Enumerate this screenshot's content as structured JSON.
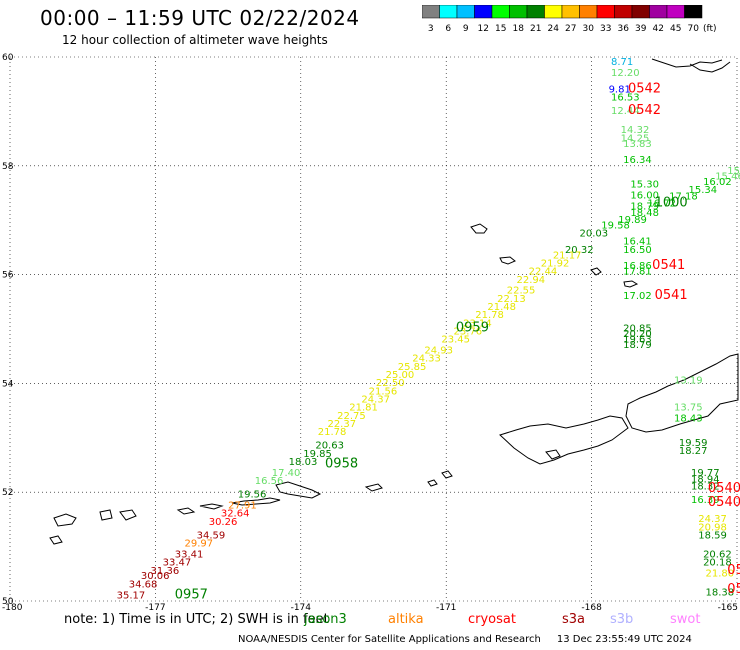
{
  "header": {
    "title": "00:00 – 11:59 UTC 02/22/2024",
    "subtitle": "12 hour collection of altimeter wave heights"
  },
  "colorbar": {
    "unit_label": "(ft)",
    "bins": [
      {
        "color": "#808080",
        "label": "3"
      },
      {
        "color": "#00ffff",
        "label": "6"
      },
      {
        "color": "#00c0ff",
        "label": "9"
      },
      {
        "color": "#0000ff",
        "label": "12"
      },
      {
        "color": "#00ff00",
        "label": "15"
      },
      {
        "color": "#00c000",
        "label": "18"
      },
      {
        "color": "#008000",
        "label": "21"
      },
      {
        "color": "#ffff00",
        "label": "24"
      },
      {
        "color": "#ffc000",
        "label": "27"
      },
      {
        "color": "#ff8000",
        "label": "30"
      },
      {
        "color": "#ff0000",
        "label": "33"
      },
      {
        "color": "#c00000",
        "label": "36"
      },
      {
        "color": "#800000",
        "label": "39"
      },
      {
        "color": "#a000a0",
        "label": "42"
      },
      {
        "color": "#c000c0",
        "label": "45"
      },
      {
        "color": "#000000",
        "label": "70"
      }
    ]
  },
  "map": {
    "lon_range": [
      -180,
      -165
    ],
    "lat_range": [
      50,
      60
    ],
    "lon_ticks": [
      "-180",
      "-177",
      "-174",
      "-171",
      "-168",
      "-165"
    ],
    "lat_ticks": [
      "60",
      "58",
      "56",
      "54",
      "52",
      "50"
    ],
    "grid": true,
    "point_colors": {
      "green_light": "#00c000",
      "green_dark": "#008000",
      "lime": "#33cc33",
      "yellow": "#e6e600",
      "orange": "#ff8000",
      "red": "#ff0000",
      "dark_red": "#a00000",
      "blue": "#0000ff",
      "cyan": "#00b0e0",
      "pale_green": "#66dd66"
    },
    "time_labels": [
      {
        "text": "0542",
        "lon": -167.25,
        "lat": 59.35,
        "color": "#ff0000"
      },
      {
        "text": "0542",
        "lon": -167.25,
        "lat": 58.95,
        "color": "#ff0000"
      },
      {
        "text": "1000",
        "lon": -166.7,
        "lat": 57.25,
        "color": "#008000"
      },
      {
        "text": "0541",
        "lon": -166.75,
        "lat": 56.1,
        "color": "#ff0000"
      },
      {
        "text": "0541",
        "lon": -166.7,
        "lat": 55.55,
        "color": "#ff0000"
      },
      {
        "text": "0959",
        "lon": -170.8,
        "lat": 54.95,
        "color": "#008000"
      },
      {
        "text": "0958",
        "lon": -173.5,
        "lat": 52.45,
        "color": "#008000"
      },
      {
        "text": "0957",
        "lon": -176.6,
        "lat": 50.05,
        "color": "#008000"
      },
      {
        "text": "0540",
        "lon": -165.6,
        "lat": 52.0,
        "color": "#ff0000"
      },
      {
        "text": "0540",
        "lon": -165.6,
        "lat": 51.75,
        "color": "#ff0000"
      },
      {
        "text": "05",
        "lon": -165.2,
        "lat": 50.5,
        "color": "#ff0000"
      },
      {
        "text": "05",
        "lon": -165.2,
        "lat": 50.15,
        "color": "#ff0000"
      }
    ],
    "wave_heights": [
      {
        "v": "8.71",
        "lon": -167.6,
        "lat": 59.85,
        "c": "cyan"
      },
      {
        "v": "12.20",
        "lon": -167.6,
        "lat": 59.65,
        "c": "pale_green"
      },
      {
        "v": "9.81",
        "lon": -167.65,
        "lat": 59.35,
        "c": "blue"
      },
      {
        "v": "16.53",
        "lon": -167.6,
        "lat": 59.2,
        "c": "green_light"
      },
      {
        "v": "12.44",
        "lon": -167.6,
        "lat": 58.95,
        "c": "pale_green"
      },
      {
        "v": "14.32",
        "lon": -167.4,
        "lat": 58.6,
        "c": "pale_green"
      },
      {
        "v": "14.25",
        "lon": -167.4,
        "lat": 58.45,
        "c": "pale_green"
      },
      {
        "v": "13.83",
        "lon": -167.35,
        "lat": 58.35,
        "c": "pale_green"
      },
      {
        "v": "16.34",
        "lon": -167.35,
        "lat": 58.05,
        "c": "green_light"
      },
      {
        "v": "15.06",
        "lon": -165.2,
        "lat": 57.85,
        "c": "pale_green"
      },
      {
        "v": "15.46",
        "lon": -165.45,
        "lat": 57.75,
        "c": "pale_green"
      },
      {
        "v": "16.02",
        "lon": -165.7,
        "lat": 57.65,
        "c": "green_light"
      },
      {
        "v": "15.30",
        "lon": -167.2,
        "lat": 57.6,
        "c": "green_light"
      },
      {
        "v": "15.34",
        "lon": -166.0,
        "lat": 57.5,
        "c": "green_light"
      },
      {
        "v": "16.00",
        "lon": -167.2,
        "lat": 57.4,
        "c": "green_light"
      },
      {
        "v": "17.18",
        "lon": -166.4,
        "lat": 57.38,
        "c": "green_light"
      },
      {
        "v": "16.72",
        "lon": -166.85,
        "lat": 57.25,
        "c": "green_light"
      },
      {
        "v": "18.79",
        "lon": -167.2,
        "lat": 57.2,
        "c": "green_light"
      },
      {
        "v": "18.48",
        "lon": -167.2,
        "lat": 57.08,
        "c": "green_light"
      },
      {
        "v": "19.89",
        "lon": -167.45,
        "lat": 56.95,
        "c": "green_light"
      },
      {
        "v": "19.58",
        "lon": -167.8,
        "lat": 56.85,
        "c": "green_light"
      },
      {
        "v": "20.03",
        "lon": -168.25,
        "lat": 56.7,
        "c": "green_dark"
      },
      {
        "v": "16.41",
        "lon": -167.35,
        "lat": 56.55,
        "c": "green_light"
      },
      {
        "v": "16.50",
        "lon": -167.35,
        "lat": 56.4,
        "c": "green_light"
      },
      {
        "v": "20.32",
        "lon": -168.55,
        "lat": 56.4,
        "c": "green_dark"
      },
      {
        "v": "21.17",
        "lon": -168.8,
        "lat": 56.3,
        "c": "yellow"
      },
      {
        "v": "21.92",
        "lon": -169.05,
        "lat": 56.15,
        "c": "yellow"
      },
      {
        "v": "22.44",
        "lon": -169.3,
        "lat": 56.0,
        "c": "yellow"
      },
      {
        "v": "16.86",
        "lon": -167.35,
        "lat": 56.1,
        "c": "green_light"
      },
      {
        "v": "17.81",
        "lon": -167.35,
        "lat": 56.0,
        "c": "green_light"
      },
      {
        "v": "22.94",
        "lon": -169.55,
        "lat": 55.85,
        "c": "yellow"
      },
      {
        "v": "22.55",
        "lon": -169.75,
        "lat": 55.65,
        "c": "yellow"
      },
      {
        "v": "22.13",
        "lon": -169.95,
        "lat": 55.5,
        "c": "yellow"
      },
      {
        "v": "21.48",
        "lon": -170.15,
        "lat": 55.35,
        "c": "yellow"
      },
      {
        "v": "17.02",
        "lon": -167.35,
        "lat": 55.55,
        "c": "green_light"
      },
      {
        "v": "21.78",
        "lon": -170.4,
        "lat": 55.2,
        "c": "yellow"
      },
      {
        "v": "23.14",
        "lon": -170.65,
        "lat": 55.05,
        "c": "yellow"
      },
      {
        "v": "23.76",
        "lon": -170.85,
        "lat": 54.9,
        "c": "yellow"
      },
      {
        "v": "23.45",
        "lon": -171.1,
        "lat": 54.75,
        "c": "yellow"
      },
      {
        "v": "20.85",
        "lon": -167.35,
        "lat": 54.95,
        "c": "green_dark"
      },
      {
        "v": "20.20",
        "lon": -167.35,
        "lat": 54.85,
        "c": "green_dark"
      },
      {
        "v": "19.63",
        "lon": -167.35,
        "lat": 54.75,
        "c": "green_dark"
      },
      {
        "v": "18.79",
        "lon": -167.35,
        "lat": 54.65,
        "c": "green_dark"
      },
      {
        "v": "24.93",
        "lon": -171.45,
        "lat": 54.55,
        "c": "yellow"
      },
      {
        "v": "24.33",
        "lon": -171.7,
        "lat": 54.4,
        "c": "yellow"
      },
      {
        "v": "25.85",
        "lon": -172.0,
        "lat": 54.25,
        "c": "yellow"
      },
      {
        "v": "25.00",
        "lon": -172.25,
        "lat": 54.1,
        "c": "yellow"
      },
      {
        "v": "22.50",
        "lon": -172.45,
        "lat": 53.95,
        "c": "yellow"
      },
      {
        "v": "21.56",
        "lon": -172.6,
        "lat": 53.8,
        "c": "yellow"
      },
      {
        "v": "24.37",
        "lon": -172.75,
        "lat": 53.65,
        "c": "yellow"
      },
      {
        "v": "21.81",
        "lon": -173.0,
        "lat": 53.5,
        "c": "yellow"
      },
      {
        "v": "22.75",
        "lon": -173.25,
        "lat": 53.35,
        "c": "yellow"
      },
      {
        "v": "22.37",
        "lon": -173.45,
        "lat": 53.2,
        "c": "yellow"
      },
      {
        "v": "21.78",
        "lon": -173.65,
        "lat": 53.05,
        "c": "yellow"
      },
      {
        "v": "13.19",
        "lon": -166.3,
        "lat": 54.0,
        "c": "pale_green"
      },
      {
        "v": "13.75",
        "lon": -166.3,
        "lat": 53.5,
        "c": "pale_green"
      },
      {
        "v": "18.43",
        "lon": -166.3,
        "lat": 53.3,
        "c": "green_light"
      },
      {
        "v": "20.63",
        "lon": -173.7,
        "lat": 52.8,
        "c": "green_dark"
      },
      {
        "v": "19.85",
        "lon": -173.95,
        "lat": 52.65,
        "c": "green_dark"
      },
      {
        "v": "18.03",
        "lon": -174.25,
        "lat": 52.5,
        "c": "green_dark"
      },
      {
        "v": "19.59",
        "lon": -166.2,
        "lat": 52.85,
        "c": "green_dark"
      },
      {
        "v": "18.27",
        "lon": -166.2,
        "lat": 52.7,
        "c": "green_dark"
      },
      {
        "v": "17.40",
        "lon": -174.6,
        "lat": 52.3,
        "c": "pale_green"
      },
      {
        "v": "16.56",
        "lon": -174.95,
        "lat": 52.15,
        "c": "pale_green"
      },
      {
        "v": "19.77",
        "lon": -165.95,
        "lat": 52.3,
        "c": "green_dark"
      },
      {
        "v": "18.94",
        "lon": -165.95,
        "lat": 52.18,
        "c": "green_dark"
      },
      {
        "v": "18.32",
        "lon": -165.95,
        "lat": 52.05,
        "c": "green_dark"
      },
      {
        "v": "16.39",
        "lon": -165.95,
        "lat": 51.8,
        "c": "green_light"
      },
      {
        "v": "19.56",
        "lon": -175.3,
        "lat": 51.9,
        "c": "green_dark"
      },
      {
        "v": "27.91",
        "lon": -175.5,
        "lat": 51.7,
        "c": "orange"
      },
      {
        "v": "32.64",
        "lon": -175.65,
        "lat": 51.55,
        "c": "red"
      },
      {
        "v": "30.26",
        "lon": -175.9,
        "lat": 51.4,
        "c": "red"
      },
      {
        "v": "24.37",
        "lon": -165.8,
        "lat": 51.45,
        "c": "yellow"
      },
      {
        "v": "20.98",
        "lon": -165.8,
        "lat": 51.3,
        "c": "yellow"
      },
      {
        "v": "18.59",
        "lon": -165.8,
        "lat": 51.15,
        "c": "green_dark"
      },
      {
        "v": "34.59",
        "lon": -176.15,
        "lat": 51.15,
        "c": "dark_red"
      },
      {
        "v": "29.97",
        "lon": -176.4,
        "lat": 51.0,
        "c": "orange"
      },
      {
        "v": "33.41",
        "lon": -176.6,
        "lat": 50.8,
        "c": "dark_red"
      },
      {
        "v": "33.47",
        "lon": -176.85,
        "lat": 50.65,
        "c": "dark_red"
      },
      {
        "v": "20.62",
        "lon": -165.7,
        "lat": 50.8,
        "c": "green_dark"
      },
      {
        "v": "20.18",
        "lon": -165.7,
        "lat": 50.65,
        "c": "green_dark"
      },
      {
        "v": "31.36",
        "lon": -177.1,
        "lat": 50.5,
        "c": "dark_red"
      },
      {
        "v": "21.80",
        "lon": -165.65,
        "lat": 50.45,
        "c": "yellow"
      },
      {
        "v": "30.06",
        "lon": -177.3,
        "lat": 50.4,
        "c": "dark_red"
      },
      {
        "v": "34.68",
        "lon": -177.55,
        "lat": 50.25,
        "c": "dark_red"
      },
      {
        "v": "35.17",
        "lon": -177.8,
        "lat": 50.05,
        "c": "dark_red"
      },
      {
        "v": "18.38",
        "lon": -165.65,
        "lat": 50.1,
        "c": "green_dark"
      }
    ]
  },
  "footer": {
    "note": "note: 1) Time is in UTC; 2) SWH is in feet",
    "satellites": [
      {
        "name": "jason3",
        "color": "#008000"
      },
      {
        "name": "altika",
        "color": "#ff8000"
      },
      {
        "name": "cryosat",
        "color": "#ff0000"
      },
      {
        "name": "s3a",
        "color": "#a00000"
      },
      {
        "name": "s3b",
        "color": "#b0b0ff"
      },
      {
        "name": "swot",
        "color": "#ff80ff"
      }
    ],
    "credit": "NOAA/NESDIS Center for Satellite Applications and Research",
    "timestamp": "13 Dec 23:55:49 UTC 2024"
  }
}
